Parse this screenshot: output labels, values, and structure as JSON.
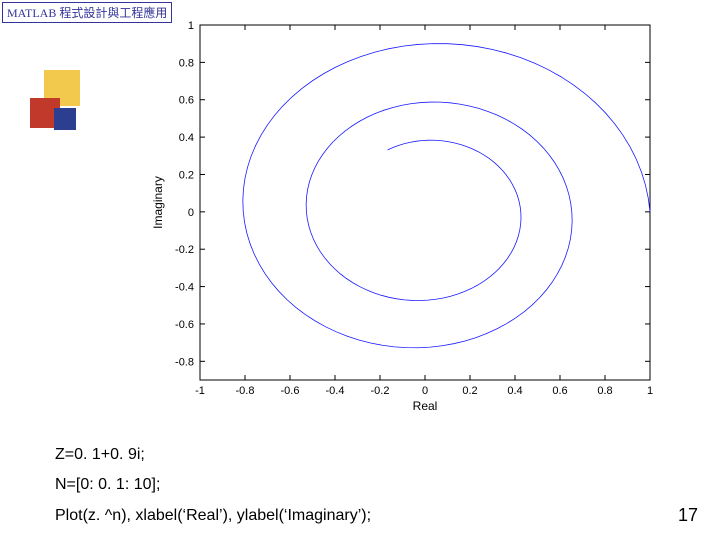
{
  "header": {
    "title": "MATLAB 程式設計與工程應用"
  },
  "logo": {
    "squares": [
      {
        "color": "#f2c94c"
      },
      {
        "color": "#c0392b"
      },
      {
        "color": "#2c3e8f"
      }
    ]
  },
  "chart": {
    "type": "line",
    "xlabel": "Real",
    "ylabel": "Imaginary",
    "xlim": [
      -1,
      1
    ],
    "ylim": [
      -0.9,
      1.0
    ],
    "xticks": [
      -1,
      -0.8,
      -0.6,
      -0.4,
      -0.2,
      0,
      0.2,
      0.4,
      0.6,
      0.8,
      1
    ],
    "yticks": [
      -0.8,
      -0.6,
      -0.4,
      -0.2,
      0,
      0.2,
      0.4,
      0.6,
      0.8,
      1
    ],
    "line_color": "#1a1aff",
    "line_width": 0.8,
    "background_color": "#ffffff",
    "border_color": "#000000",
    "tick_fontsize": 11,
    "label_fontsize": 12,
    "z_real": 0.1,
    "z_imag": 0.9,
    "n_start": 0,
    "n_step": 0.1,
    "n_end": 10
  },
  "code": {
    "line1": "Z=0. 1+0. 9i;",
    "line2": "N=[0: 0. 1: 10];",
    "line3": "Plot(z. ^n), xlabel(‘Real’), ylabel(‘Imaginary’);"
  },
  "page": {
    "number": "17"
  }
}
